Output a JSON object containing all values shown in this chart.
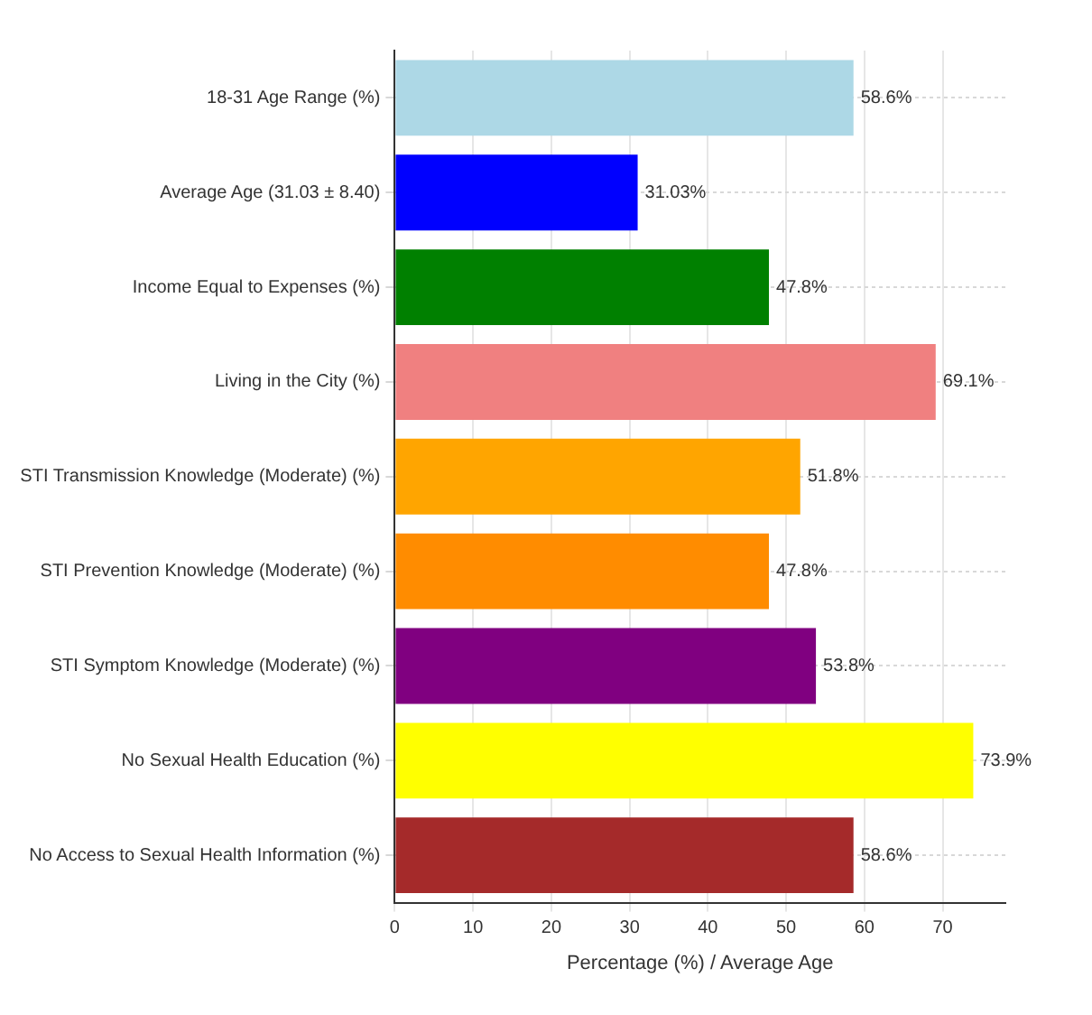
{
  "chart_data": {
    "type": "bar",
    "orientation": "horizontal",
    "xlabel": "Percentage (%) / Average Age",
    "categories": [
      "18-31 Age Range (%)",
      "Average Age (31.03 ± 8.40)",
      "Income Equal to Expenses (%)",
      "Living in the City (%)",
      "STI Transmission Knowledge (Moderate) (%)",
      "STI Prevention Knowledge (Moderate) (%)",
      "STI Symptom Knowledge (Moderate) (%)",
      "No Sexual Health Education (%)",
      "No Access to Sexual Health Information (%)"
    ],
    "values": [
      58.6,
      31.03,
      47.8,
      69.1,
      51.8,
      47.8,
      53.8,
      73.9,
      58.6
    ],
    "value_labels": [
      "58.6%",
      "31.03%",
      "47.8%",
      "69.1%",
      "51.8%",
      "47.8%",
      "53.8%",
      "73.9%",
      "58.6%"
    ],
    "colors": [
      "#add8e6",
      "#0000ff",
      "#008000",
      "#f08080",
      "#ffa500",
      "#ff8c00",
      "#800080",
      "#ffff00",
      "#a52a2a"
    ],
    "xlim": [
      0,
      78
    ],
    "xticks": [
      0,
      10,
      20,
      30,
      40,
      50,
      60,
      70
    ],
    "grid": true,
    "legend": false
  }
}
